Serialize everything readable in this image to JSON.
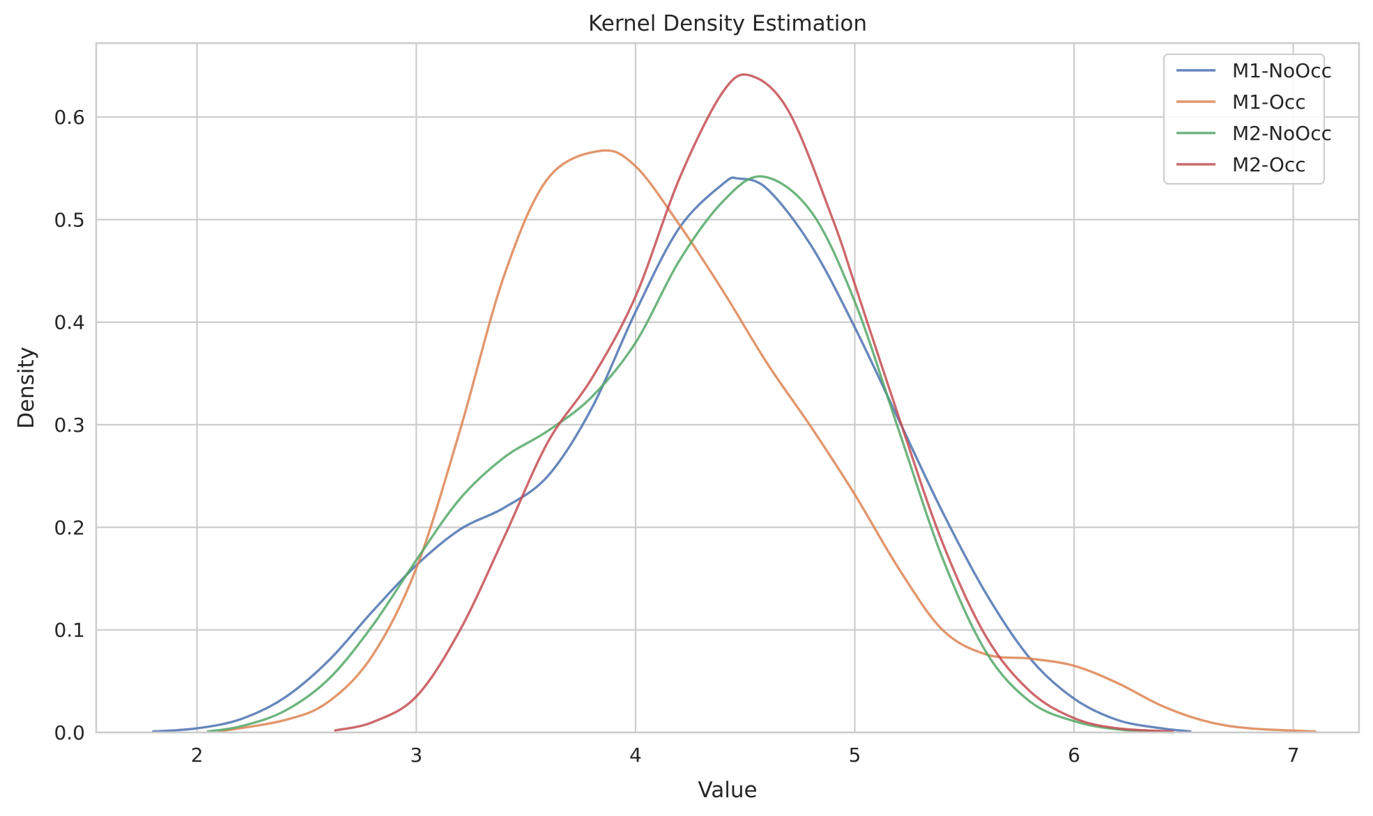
{
  "chart_data": {
    "type": "line",
    "title": "Kernel Density Estimation",
    "xlabel": "Value",
    "ylabel": "Density",
    "xlim": [
      1.54,
      7.3
    ],
    "ylim": [
      0,
      0.672
    ],
    "xticks": [
      2,
      3,
      4,
      5,
      6,
      7
    ],
    "yticks": [
      0.0,
      0.1,
      0.2,
      0.3,
      0.4,
      0.5,
      0.6
    ],
    "xtick_labels": [
      "2",
      "3",
      "4",
      "5",
      "6",
      "7"
    ],
    "ytick_labels": [
      "0.0",
      "0.1",
      "0.2",
      "0.3",
      "0.4",
      "0.5",
      "0.6"
    ],
    "grid": true,
    "legend_position": "top-right",
    "series": [
      {
        "name": "M1-NoOcc",
        "color": "#4c72b0",
        "x": [
          1.8,
          2.0,
          2.2,
          2.4,
          2.6,
          2.8,
          3.0,
          3.2,
          3.4,
          3.6,
          3.8,
          4.0,
          4.2,
          4.4,
          4.47,
          4.6,
          4.8,
          5.0,
          5.2,
          5.4,
          5.6,
          5.8,
          6.0,
          6.2,
          6.4,
          6.53
        ],
        "y": [
          0.001,
          0.004,
          0.013,
          0.034,
          0.07,
          0.118,
          0.163,
          0.198,
          0.219,
          0.25,
          0.316,
          0.41,
          0.492,
          0.535,
          0.54,
          0.53,
          0.475,
          0.395,
          0.305,
          0.215,
          0.135,
          0.072,
          0.033,
          0.012,
          0.004,
          0.001
        ]
      },
      {
        "name": "M1-Occ",
        "color": "#dd8452",
        "x": [
          2.1,
          2.4,
          2.6,
          2.8,
          3.0,
          3.2,
          3.4,
          3.6,
          3.84,
          4.0,
          4.2,
          4.4,
          4.6,
          4.8,
          5.0,
          5.2,
          5.4,
          5.6,
          5.8,
          6.0,
          6.2,
          6.4,
          6.6,
          6.8,
          7.1
        ],
        "y": [
          0.001,
          0.012,
          0.03,
          0.075,
          0.16,
          0.295,
          0.445,
          0.54,
          0.567,
          0.552,
          0.495,
          0.43,
          0.36,
          0.298,
          0.232,
          0.16,
          0.1,
          0.076,
          0.072,
          0.065,
          0.048,
          0.026,
          0.011,
          0.004,
          0.001
        ]
      },
      {
        "name": "M2-NoOcc",
        "color": "#55a868",
        "x": [
          2.05,
          2.2,
          2.4,
          2.6,
          2.8,
          3.0,
          3.2,
          3.4,
          3.6,
          3.8,
          4.0,
          4.2,
          4.4,
          4.58,
          4.8,
          5.0,
          5.2,
          5.4,
          5.6,
          5.8,
          6.0,
          6.2,
          6.45
        ],
        "y": [
          0.001,
          0.006,
          0.021,
          0.052,
          0.104,
          0.168,
          0.228,
          0.268,
          0.294,
          0.327,
          0.38,
          0.46,
          0.518,
          0.542,
          0.508,
          0.42,
          0.295,
          0.17,
          0.078,
          0.03,
          0.011,
          0.003,
          0.0
        ]
      },
      {
        "name": "M2-Occ",
        "color": "#c44e52",
        "x": [
          2.63,
          2.8,
          3.0,
          3.2,
          3.4,
          3.6,
          3.8,
          4.0,
          4.2,
          4.4,
          4.53,
          4.7,
          4.9,
          5.0,
          5.2,
          5.4,
          5.6,
          5.8,
          6.0,
          6.2,
          6.45
        ],
        "y": [
          0.002,
          0.01,
          0.035,
          0.1,
          0.19,
          0.283,
          0.345,
          0.425,
          0.54,
          0.625,
          0.64,
          0.605,
          0.5,
          0.437,
          0.308,
          0.185,
          0.093,
          0.04,
          0.014,
          0.004,
          0.001
        ]
      }
    ]
  }
}
